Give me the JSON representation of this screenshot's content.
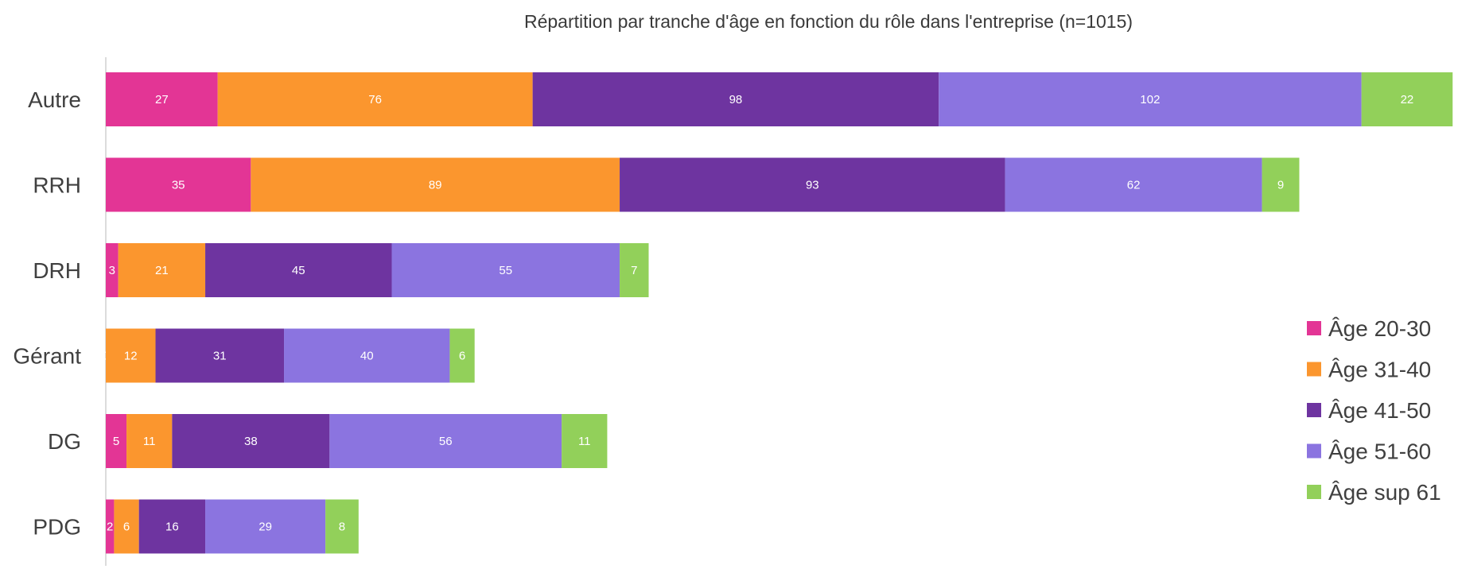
{
  "chart_data": {
    "type": "bar",
    "orientation": "horizontal",
    "stacked": true,
    "title": "Répartition par tranche d'âge en fonction du rôle dans l'entreprise (n=1015)",
    "categories": [
      "Autre",
      "RRH",
      "DRH",
      "Gérant",
      "DG",
      "PDG"
    ],
    "series": [
      {
        "name": "Âge 20-30",
        "color": "#E33595",
        "values": [
          27,
          35,
          3,
          0,
          5,
          2
        ]
      },
      {
        "name": "Âge 31-40",
        "color": "#FB962E",
        "values": [
          76,
          89,
          21,
          12,
          11,
          6
        ]
      },
      {
        "name": "Âge 41-50",
        "color": "#6E34A0",
        "values": [
          98,
          93,
          45,
          31,
          38,
          16
        ]
      },
      {
        "name": "Âge 51-60",
        "color": "#8B74E0",
        "values": [
          102,
          62,
          55,
          40,
          56,
          29
        ]
      },
      {
        "name": "Âge sup 61",
        "color": "#92D05A",
        "values": [
          22,
          9,
          7,
          6,
          11,
          8
        ]
      }
    ],
    "xlim": [
      0,
      325
    ],
    "grid": false,
    "legend": "right"
  }
}
